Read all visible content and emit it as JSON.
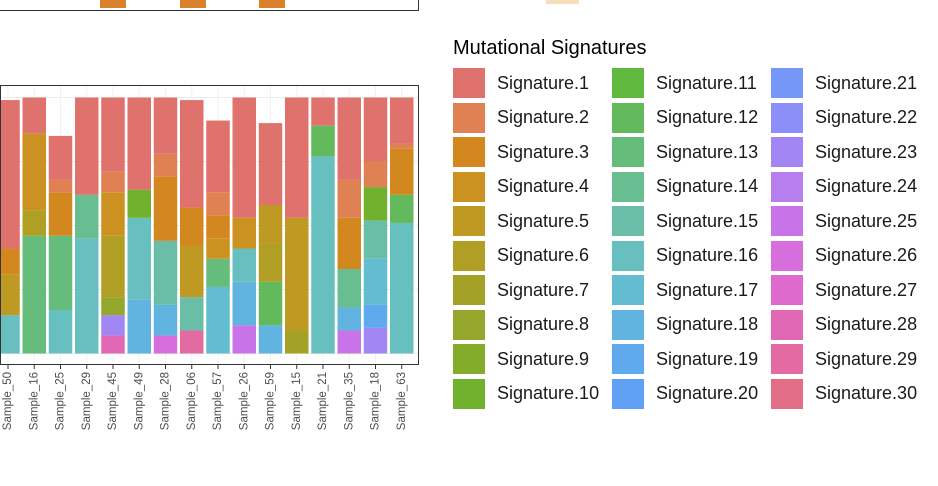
{
  "chart_data": {
    "type": "bar",
    "stacked": true,
    "normalized": true,
    "categories": [
      "Sample_50",
      "Sample_16",
      "Sample_25",
      "Sample_29",
      "Sample_45",
      "Sample_49",
      "Sample_28",
      "Sample_06",
      "Sample_57",
      "Sample_26",
      "Sample_59",
      "Sample_15",
      "Sample_21",
      "Sample_35",
      "Sample_18",
      "Sample_63"
    ],
    "series": [
      {
        "name": "Signature.1",
        "color": "#E0726D",
        "values": [
          0.58,
          0.14,
          0.17,
          0.38,
          0.29,
          0.36,
          0.22,
          0.42,
          0.28,
          0.47,
          0.32,
          0.47,
          0.11,
          0.32,
          0.25,
          0.18
        ]
      },
      {
        "name": "Signature.2",
        "color": "#DF8152",
        "values": [
          0,
          0,
          0.05,
          0,
          0.08,
          0,
          0.09,
          0,
          0.09,
          0,
          0,
          0,
          0,
          0.15,
          0.1,
          0.02
        ]
      },
      {
        "name": "Signature.3",
        "color": "#D3881F",
        "values": [
          0.1,
          0,
          0.17,
          0,
          0,
          0,
          0.25,
          0.15,
          0.09,
          0,
          0,
          0,
          0,
          0.2,
          0,
          0.18
        ]
      },
      {
        "name": "Signature.4",
        "color": "#CB9222",
        "values": [
          0,
          0.3,
          0,
          0,
          0.17,
          0,
          0,
          0,
          0.08,
          0.12,
          0,
          0,
          0,
          0,
          0,
          0
        ]
      },
      {
        "name": "Signature.5",
        "color": "#BF9A22",
        "values": [
          0.16,
          0,
          0,
          0,
          0,
          0,
          0,
          0.2,
          0,
          0,
          0.15,
          0.44,
          0,
          0,
          0,
          0
        ]
      },
      {
        "name": "Signature.6",
        "color": "#B19E24",
        "values": [
          0,
          0.1,
          0,
          0,
          0.24,
          0,
          0,
          0,
          0,
          0,
          0.15,
          0,
          0,
          0,
          0,
          0
        ]
      },
      {
        "name": "Signature.7",
        "color": "#A3A126",
        "values": [
          0,
          0,
          0,
          0,
          0,
          0,
          0,
          0,
          0,
          0,
          0,
          0.09,
          0,
          0,
          0,
          0
        ]
      },
      {
        "name": "Signature.8",
        "color": "#94A62B",
        "values": [
          0,
          0,
          0,
          0,
          0.07,
          0,
          0,
          0,
          0,
          0,
          0,
          0,
          0,
          0,
          0,
          0
        ]
      },
      {
        "name": "Signature.9",
        "color": "#84AC2B",
        "values": [
          0,
          0,
          0,
          0,
          0,
          0,
          0,
          0,
          0,
          0,
          0,
          0,
          0,
          0,
          0,
          0
        ]
      },
      {
        "name": "Signature.10",
        "color": "#72B12D",
        "values": [
          0,
          0,
          0,
          0,
          0,
          0.11,
          0,
          0,
          0,
          0,
          0,
          0,
          0,
          0,
          0.13,
          0
        ]
      },
      {
        "name": "Signature.11",
        "color": "#60B93F",
        "values": [
          0,
          0,
          0,
          0,
          0,
          0,
          0,
          0,
          0,
          0,
          0,
          0,
          0,
          0,
          0,
          0
        ]
      },
      {
        "name": "Signature.12",
        "color": "#63BA5C",
        "values": [
          0,
          0,
          0,
          0,
          0,
          0,
          0,
          0,
          0,
          0,
          0.17,
          0,
          0.12,
          0,
          0,
          0.11
        ]
      },
      {
        "name": "Signature.13",
        "color": "#66BC7A",
        "values": [
          0,
          0.46,
          0.29,
          0,
          0,
          0,
          0,
          0,
          0.11,
          0,
          0,
          0,
          0,
          0,
          0,
          0
        ]
      },
      {
        "name": "Signature.14",
        "color": "#68BD91",
        "values": [
          0,
          0,
          0,
          0.17,
          0,
          0,
          0,
          0,
          0,
          0,
          0,
          0,
          0,
          0.15,
          0,
          0
        ]
      },
      {
        "name": "Signature.15",
        "color": "#6ABEA8",
        "values": [
          0,
          0,
          0,
          0,
          0,
          0,
          0.25,
          0.13,
          0,
          0,
          0,
          0,
          0,
          0,
          0.15,
          0
        ]
      },
      {
        "name": "Signature.16",
        "color": "#68BFBF",
        "values": [
          0.15,
          0,
          0.17,
          0.45,
          0,
          0.32,
          0,
          0,
          0,
          0.13,
          0,
          0,
          0.77,
          0,
          0,
          0.51
        ]
      },
      {
        "name": "Signature.17",
        "color": "#63BDD0",
        "values": [
          0,
          0,
          0,
          0,
          0,
          0,
          0,
          0,
          0.26,
          0,
          0,
          0,
          0,
          0,
          0.18,
          0
        ]
      },
      {
        "name": "Signature.18",
        "color": "#61B4E0",
        "values": [
          0,
          0,
          0,
          0,
          0,
          0.21,
          0.12,
          0,
          0,
          0.17,
          0.11,
          0,
          0,
          0.09,
          0,
          0
        ]
      },
      {
        "name": "Signature.19",
        "color": "#5FAAEC",
        "values": [
          0,
          0,
          0,
          0,
          0,
          0,
          0,
          0,
          0,
          0,
          0,
          0,
          0,
          0,
          0.09,
          0
        ]
      },
      {
        "name": "Signature.20",
        "color": "#60A0F5",
        "values": [
          0,
          0,
          0,
          0,
          0,
          0,
          0,
          0,
          0,
          0,
          0,
          0,
          0,
          0,
          0,
          0
        ]
      },
      {
        "name": "Signature.21",
        "color": "#7598F8",
        "values": [
          0,
          0,
          0,
          0,
          0,
          0,
          0,
          0,
          0,
          0,
          0,
          0,
          0,
          0,
          0,
          0
        ]
      },
      {
        "name": "Signature.22",
        "color": "#8C8FF8",
        "values": [
          0,
          0,
          0,
          0,
          0,
          0,
          0,
          0,
          0,
          0,
          0,
          0,
          0,
          0,
          0,
          0
        ]
      },
      {
        "name": "Signature.23",
        "color": "#A287F4",
        "values": [
          0,
          0,
          0,
          0,
          0.08,
          0,
          0,
          0,
          0,
          0,
          0,
          0,
          0,
          0,
          0.1,
          0
        ]
      },
      {
        "name": "Signature.24",
        "color": "#B77EEF",
        "values": [
          0,
          0,
          0,
          0,
          0,
          0,
          0,
          0,
          0,
          0,
          0,
          0,
          0,
          0,
          0,
          0
        ]
      },
      {
        "name": "Signature.25",
        "color": "#C874E8",
        "values": [
          0,
          0,
          0,
          0,
          0,
          0,
          0,
          0,
          0,
          0.11,
          0,
          0,
          0,
          0.09,
          0,
          0
        ]
      },
      {
        "name": "Signature.26",
        "color": "#D66EDE",
        "values": [
          0,
          0,
          0,
          0,
          0,
          0,
          0.07,
          0,
          0,
          0,
          0,
          0,
          0,
          0,
          0,
          0
        ]
      },
      {
        "name": "Signature.27",
        "color": "#DF6ACE",
        "values": [
          0,
          0,
          0,
          0,
          0,
          0,
          0,
          0,
          0,
          0,
          0,
          0,
          0,
          0,
          0,
          0
        ]
      },
      {
        "name": "Signature.28",
        "color": "#E068B4",
        "values": [
          0,
          0,
          0,
          0,
          0.07,
          0,
          0,
          0,
          0,
          0,
          0,
          0,
          0,
          0,
          0,
          0
        ]
      },
      {
        "name": "Signature.29",
        "color": "#E46AA2",
        "values": [
          0,
          0,
          0,
          0,
          0,
          0,
          0,
          0.09,
          0,
          0,
          0,
          0,
          0,
          0,
          0,
          0
        ]
      },
      {
        "name": "Signature.30",
        "color": "#E26E85",
        "values": [
          0,
          0,
          0,
          0,
          0,
          0,
          0,
          0,
          0,
          0,
          0,
          0,
          0,
          0,
          0,
          0
        ]
      }
    ],
    "legend_title": "Mutational Signatures",
    "legend_placement": "right",
    "xlabel": "",
    "ylabel": "",
    "ylim": [
      0,
      1
    ],
    "grid": true
  },
  "top_strip": {
    "bar_color": "#D9822B",
    "swatch_color": "#F7DFBD"
  }
}
